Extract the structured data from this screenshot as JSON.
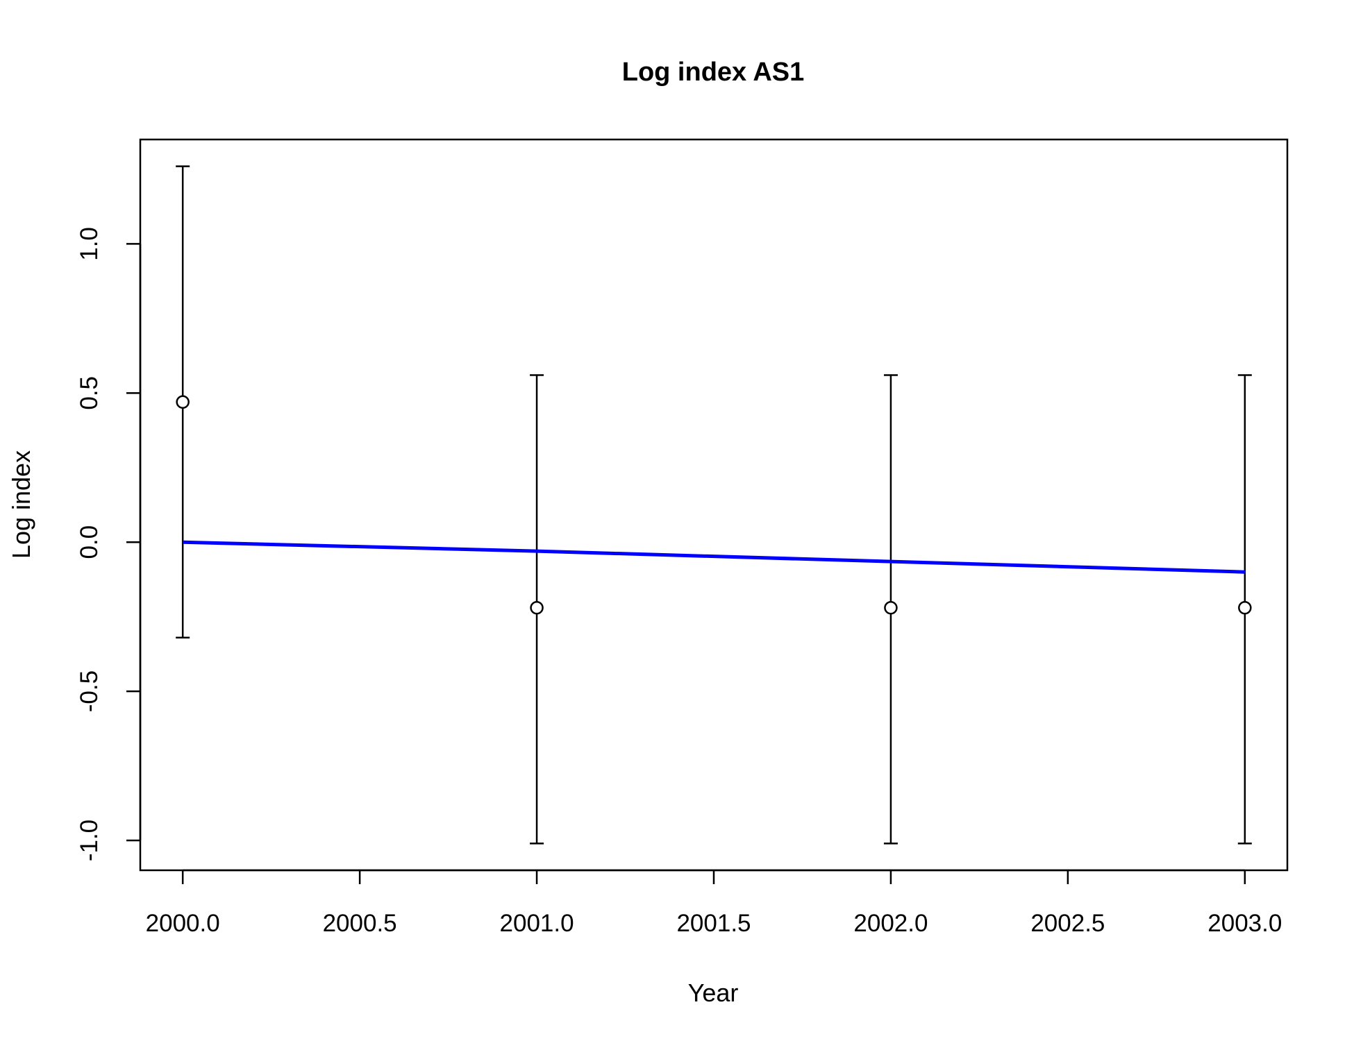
{
  "chart_data": {
    "type": "scatter",
    "title": "Log index AS1",
    "xlabel": "Year",
    "ylabel": "Log index",
    "xlim": [
      1999.88,
      2003.12
    ],
    "ylim": [
      -1.1,
      1.35
    ],
    "x_ticks": [
      2000.0,
      2000.5,
      2001.0,
      2001.5,
      2002.0,
      2002.5,
      2003.0
    ],
    "x_tick_labels": [
      "2000.0",
      "2000.5",
      "2001.0",
      "2001.5",
      "2002.0",
      "2002.5",
      "2003.0"
    ],
    "y_ticks": [
      -1.0,
      -0.5,
      0.0,
      0.5,
      1.0
    ],
    "y_tick_labels": [
      "-1.0",
      "-0.5",
      "0.0",
      "0.5",
      "1.0"
    ],
    "grid": false,
    "legend": "none",
    "observed": {
      "x": [
        2000,
        2001,
        2002,
        2003
      ],
      "y": [
        0.47,
        -0.22,
        -0.22,
        -0.22
      ],
      "lower": [
        -0.32,
        -1.01,
        -1.01,
        -1.01
      ],
      "upper": [
        1.26,
        0.56,
        0.56,
        0.56
      ],
      "marker": "open-circle",
      "color": "#000000"
    },
    "fitted": {
      "x": [
        2000,
        2001,
        2002,
        2003
      ],
      "y": [
        0.0,
        -0.03,
        -0.065,
        -0.1
      ],
      "color": "#0000ff"
    }
  }
}
